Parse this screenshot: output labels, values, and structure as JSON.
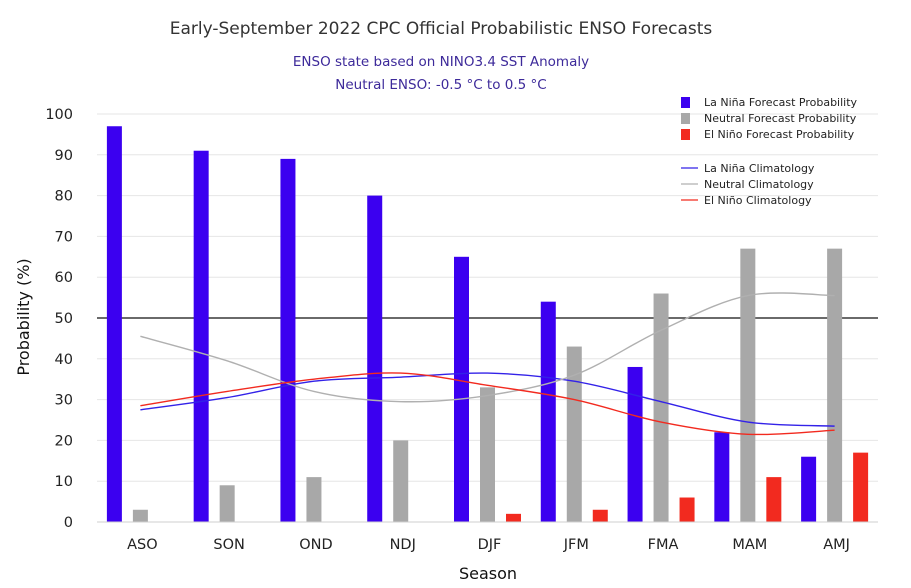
{
  "chart_data": {
    "type": "bar",
    "title": "Early-September 2022 CPC Official Probabilistic ENSO Forecasts",
    "subtitle_lines": [
      "ENSO state based on NINO3.4 SST Anomaly",
      "Neutral ENSO: -0.5 °C to 0.5 °C"
    ],
    "xlabel": "Season",
    "ylabel": "Probability (%)",
    "ylim": [
      0,
      100
    ],
    "yticks": [
      0,
      10,
      20,
      30,
      40,
      50,
      60,
      70,
      80,
      90,
      100
    ],
    "reference_line": 50,
    "categories": [
      "ASO",
      "SON",
      "OND",
      "NDJ",
      "DJF",
      "JFM",
      "FMA",
      "MAM",
      "AMJ"
    ],
    "series": [
      {
        "name": "La Niña Forecast Probability",
        "color": "#3b00f0",
        "values": [
          97,
          91,
          89,
          80,
          65,
          54,
          38,
          22,
          16
        ]
      },
      {
        "name": "Neutral Forecast Probability",
        "color": "#a8a8a8",
        "values": [
          3,
          9,
          11,
          20,
          33,
          43,
          56,
          67,
          67
        ]
      },
      {
        "name": "El Niño Forecast Probability",
        "color": "#f22a1f",
        "values": [
          0,
          0,
          0,
          0,
          2,
          3,
          6,
          11,
          17
        ]
      }
    ],
    "climatology": [
      {
        "name": "La Niña Climatology",
        "color": "#3322e8",
        "values": [
          27.5,
          30.5,
          34.5,
          35.5,
          36.5,
          34.5,
          29.5,
          24.5,
          23.5
        ]
      },
      {
        "name": "Neutral Climatology",
        "color": "#b0b0b0",
        "values": [
          45.5,
          39.5,
          32,
          29.5,
          31,
          36,
          47,
          55.5,
          55.5
        ]
      },
      {
        "name": "El Niño Climatology",
        "color": "#f22a1f",
        "values": [
          28.5,
          32,
          35,
          36.5,
          33.5,
          30,
          24.5,
          21.5,
          22.5
        ]
      }
    ],
    "legend_position": "top-right"
  }
}
